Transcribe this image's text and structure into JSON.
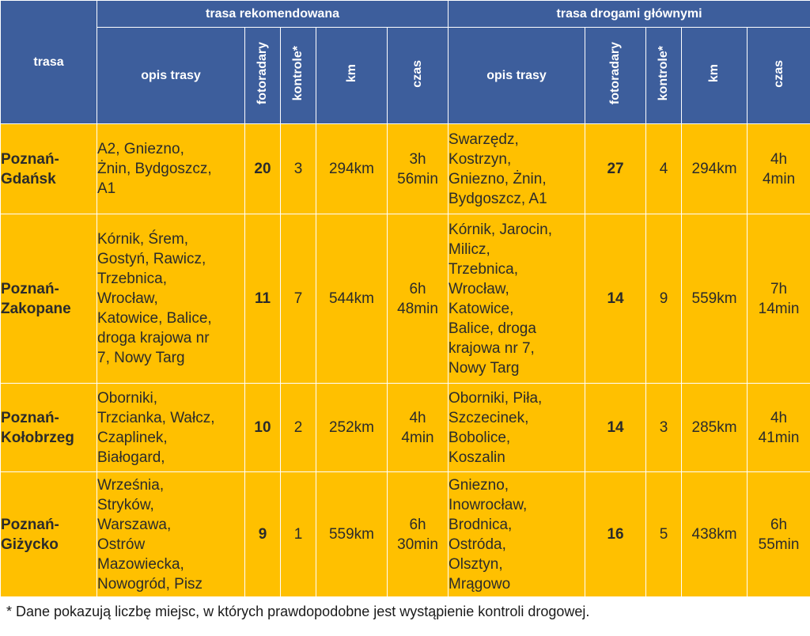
{
  "header": {
    "trasa": "trasa",
    "group_recommended": "trasa rekomendowana",
    "group_main_roads": "trasa drogami głównymi",
    "opis_trasy": "opis trasy",
    "fotoradary": "fotoradary",
    "kontrole": "kontrole*",
    "km": "km",
    "czas": "czas"
  },
  "rows": [
    {
      "route": [
        "Poznań-",
        "Gdańsk"
      ],
      "rec": {
        "desc": [
          "A2, Gniezno,",
          "Żnin, Bydgoszcz,",
          "A1"
        ],
        "fotoradary": "20",
        "kontrole": "3",
        "km": "294km",
        "czas": [
          "3h",
          "56min"
        ]
      },
      "main": {
        "desc": [
          "Swarzędz,",
          "Kostrzyn,",
          "Gniezno, Żnin,",
          "Bydgoszcz, A1"
        ],
        "fotoradary": "27",
        "kontrole": "4",
        "km": "294km",
        "czas": [
          "4h",
          "4min"
        ]
      }
    },
    {
      "route": [
        "Poznań-",
        "Zakopane"
      ],
      "rec": {
        "desc": [
          "Kórnik, Śrem,",
          "Gostyń, Rawicz,",
          "Trzebnica,",
          "Wrocław,",
          "Katowice, Balice,",
          "droga krajowa nr",
          "7, Nowy Targ"
        ],
        "fotoradary": "11",
        "kontrole": "7",
        "km": "544km",
        "czas": [
          "6h",
          "48min"
        ]
      },
      "main": {
        "desc": [
          "Kórnik, Jarocin,",
          "Milicz,",
          "Trzebnica,",
          "Wrocław,",
          "Katowice,",
          "Balice, droga",
          "krajowa nr 7,",
          "Nowy Targ"
        ],
        "fotoradary": "14",
        "kontrole": "9",
        "km": "559km",
        "czas": [
          "7h",
          "14min"
        ]
      }
    },
    {
      "route": [
        "Poznań-",
        "Kołobrzeg"
      ],
      "rec": {
        "desc": [
          "Oborniki,",
          "Trzcianka, Wałcz,",
          "Czaplinek,",
          "Białogard,"
        ],
        "fotoradary": "10",
        "kontrole": "2",
        "km": "252km",
        "czas": [
          "4h",
          "4min"
        ]
      },
      "main": {
        "desc": [
          "Oborniki, Piła,",
          "Szczecinek,",
          "Bobolice,",
          "Koszalin"
        ],
        "fotoradary": "14",
        "kontrole": "3",
        "km": "285km",
        "czas": [
          "4h",
          "41min"
        ]
      }
    },
    {
      "route": [
        "Poznań-",
        "Giżycko"
      ],
      "rec": {
        "desc": [
          "Września,",
          "Stryków,",
          "Warszawa,",
          "Ostrów",
          "Mazowiecka,",
          "Nowogród, Pisz"
        ],
        "fotoradary": "9",
        "kontrole": "1",
        "km": "559km",
        "czas": [
          "6h",
          "30min"
        ]
      },
      "main": {
        "desc": [
          "Gniezno,",
          "Inowrocław,",
          "Brodnica,",
          "Ostróda,",
          "Olsztyn,",
          "Mrągowo"
        ],
        "fotoradary": "16",
        "kontrole": "5",
        "km": "438km",
        "czas": [
          "6h",
          "55min"
        ]
      }
    }
  ],
  "footnote": "* Dane pokazują liczbę miejsc, w których prawdopodobne jest wystąpienie kontroli drogowej.",
  "colors": {
    "header_bg": "#3d5e9c",
    "cell_bg": "#ffc000",
    "header_text": "#ffffff"
  }
}
